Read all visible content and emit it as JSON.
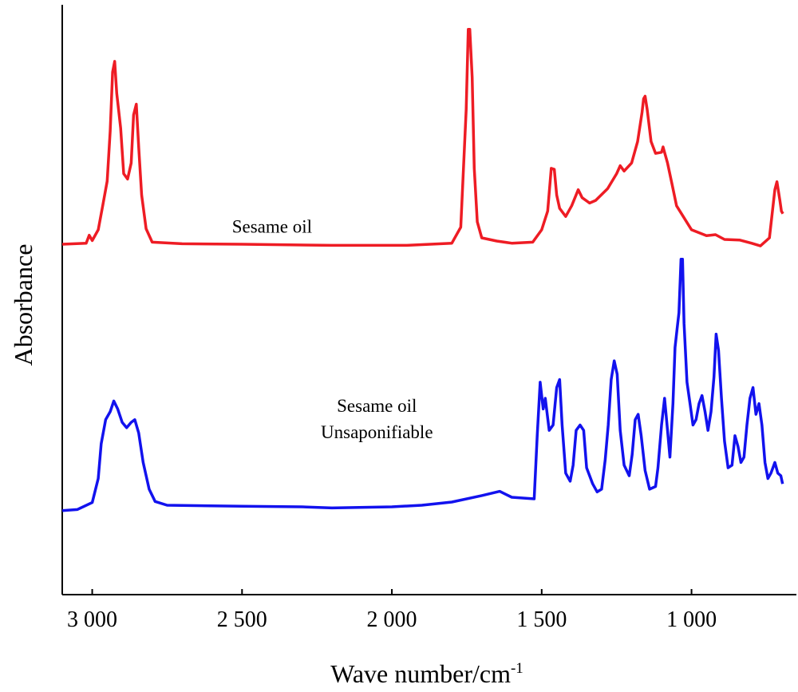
{
  "chart_data": {
    "type": "line",
    "title": "",
    "xlabel": "Wave number/cm",
    "xlabel_superscript": "-1",
    "ylabel": "Absorbance",
    "xlim": [
      3100,
      650
    ],
    "x_reversed": true,
    "ylim": [
      0,
      1
    ],
    "y_ticks_shown": false,
    "grid": false,
    "legend": "none",
    "x_ticks": [
      {
        "value": 3000,
        "label": "3 000"
      },
      {
        "value": 2500,
        "label": "2 500"
      },
      {
        "value": 2000,
        "label": "2 000"
      },
      {
        "value": 1500,
        "label": "1 500"
      },
      {
        "value": 1000,
        "label": "1 000"
      }
    ],
    "series_labels": [
      {
        "lines": [
          "Sesame oil"
        ],
        "x": 2400,
        "y": 0.61
      },
      {
        "lines": [
          "Sesame oil",
          "Unsaponifiable"
        ],
        "x": 2050,
        "y": 0.275
      }
    ],
    "series": [
      {
        "name": "Sesame oil",
        "color": "#ee1c24",
        "points": [
          [
            3100,
            0.588
          ],
          [
            3020,
            0.59
          ],
          [
            3010,
            0.605
          ],
          [
            3000,
            0.595
          ],
          [
            2980,
            0.615
          ],
          [
            2965,
            0.66
          ],
          [
            2950,
            0.706
          ],
          [
            2940,
            0.8
          ],
          [
            2932,
            0.91
          ],
          [
            2925,
            0.93
          ],
          [
            2918,
            0.87
          ],
          [
            2905,
            0.805
          ],
          [
            2895,
            0.72
          ],
          [
            2882,
            0.71
          ],
          [
            2870,
            0.74
          ],
          [
            2862,
            0.83
          ],
          [
            2853,
            0.85
          ],
          [
            2845,
            0.77
          ],
          [
            2835,
            0.68
          ],
          [
            2820,
            0.617
          ],
          [
            2800,
            0.592
          ],
          [
            2700,
            0.589
          ],
          [
            2500,
            0.588
          ],
          [
            2200,
            0.586
          ],
          [
            1950,
            0.586
          ],
          [
            1800,
            0.59
          ],
          [
            1770,
            0.62
          ],
          [
            1752,
            0.84
          ],
          [
            1745,
            0.99
          ],
          [
            1740,
            0.99
          ],
          [
            1732,
            0.9
          ],
          [
            1725,
            0.73
          ],
          [
            1715,
            0.63
          ],
          [
            1700,
            0.6
          ],
          [
            1650,
            0.594
          ],
          [
            1600,
            0.59
          ],
          [
            1530,
            0.592
          ],
          [
            1500,
            0.615
          ],
          [
            1480,
            0.65
          ],
          [
            1468,
            0.73
          ],
          [
            1458,
            0.728
          ],
          [
            1450,
            0.68
          ],
          [
            1440,
            0.655
          ],
          [
            1420,
            0.64
          ],
          [
            1400,
            0.66
          ],
          [
            1378,
            0.69
          ],
          [
            1365,
            0.675
          ],
          [
            1340,
            0.665
          ],
          [
            1320,
            0.67
          ],
          [
            1280,
            0.692
          ],
          [
            1250,
            0.72
          ],
          [
            1238,
            0.735
          ],
          [
            1225,
            0.725
          ],
          [
            1200,
            0.74
          ],
          [
            1180,
            0.78
          ],
          [
            1165,
            0.835
          ],
          [
            1160,
            0.86
          ],
          [
            1155,
            0.865
          ],
          [
            1148,
            0.84
          ],
          [
            1135,
            0.78
          ],
          [
            1120,
            0.758
          ],
          [
            1100,
            0.76
          ],
          [
            1095,
            0.77
          ],
          [
            1080,
            0.74
          ],
          [
            1065,
            0.7
          ],
          [
            1050,
            0.66
          ],
          [
            1000,
            0.615
          ],
          [
            950,
            0.604
          ],
          [
            920,
            0.606
          ],
          [
            890,
            0.597
          ],
          [
            840,
            0.596
          ],
          [
            800,
            0.59
          ],
          [
            770,
            0.585
          ],
          [
            740,
            0.6
          ],
          [
            722,
            0.69
          ],
          [
            715,
            0.705
          ],
          [
            705,
            0.67
          ],
          [
            700,
            0.65
          ],
          [
            695,
            0.645
          ]
        ]
      },
      {
        "name": "Sesame oil Unsaponifiable",
        "color": "#1212ee",
        "points": [
          [
            3100,
            0.09
          ],
          [
            3050,
            0.092
          ],
          [
            3000,
            0.105
          ],
          [
            2980,
            0.15
          ],
          [
            2970,
            0.215
          ],
          [
            2955,
            0.26
          ],
          [
            2940,
            0.275
          ],
          [
            2928,
            0.295
          ],
          [
            2915,
            0.28
          ],
          [
            2900,
            0.255
          ],
          [
            2885,
            0.245
          ],
          [
            2870,
            0.255
          ],
          [
            2858,
            0.26
          ],
          [
            2845,
            0.235
          ],
          [
            2830,
            0.18
          ],
          [
            2810,
            0.13
          ],
          [
            2790,
            0.107
          ],
          [
            2750,
            0.1
          ],
          [
            2500,
            0.098
          ],
          [
            2300,
            0.097
          ],
          [
            2200,
            0.095
          ],
          [
            2000,
            0.097
          ],
          [
            1900,
            0.1
          ],
          [
            1800,
            0.106
          ],
          [
            1700,
            0.118
          ],
          [
            1640,
            0.126
          ],
          [
            1600,
            0.115
          ],
          [
            1525,
            0.112
          ],
          [
            1515,
            0.23
          ],
          [
            1505,
            0.33
          ],
          [
            1495,
            0.28
          ],
          [
            1488,
            0.3
          ],
          [
            1475,
            0.24
          ],
          [
            1462,
            0.25
          ],
          [
            1450,
            0.32
          ],
          [
            1440,
            0.335
          ],
          [
            1432,
            0.25
          ],
          [
            1420,
            0.16
          ],
          [
            1405,
            0.145
          ],
          [
            1395,
            0.175
          ],
          [
            1385,
            0.24
          ],
          [
            1372,
            0.25
          ],
          [
            1360,
            0.24
          ],
          [
            1350,
            0.17
          ],
          [
            1330,
            0.14
          ],
          [
            1315,
            0.125
          ],
          [
            1300,
            0.13
          ],
          [
            1288,
            0.185
          ],
          [
            1278,
            0.25
          ],
          [
            1268,
            0.335
          ],
          [
            1258,
            0.37
          ],
          [
            1248,
            0.345
          ],
          [
            1238,
            0.24
          ],
          [
            1225,
            0.175
          ],
          [
            1208,
            0.155
          ],
          [
            1198,
            0.195
          ],
          [
            1188,
            0.26
          ],
          [
            1178,
            0.27
          ],
          [
            1168,
            0.23
          ],
          [
            1155,
            0.165
          ],
          [
            1140,
            0.13
          ],
          [
            1120,
            0.135
          ],
          [
            1112,
            0.17
          ],
          [
            1100,
            0.25
          ],
          [
            1090,
            0.3
          ],
          [
            1080,
            0.24
          ],
          [
            1072,
            0.19
          ],
          [
            1062,
            0.29
          ],
          [
            1055,
            0.395
          ],
          [
            1048,
            0.43
          ],
          [
            1042,
            0.46
          ],
          [
            1035,
            0.56
          ],
          [
            1030,
            0.56
          ],
          [
            1025,
            0.44
          ],
          [
            1015,
            0.33
          ],
          [
            1005,
            0.29
          ],
          [
            995,
            0.25
          ],
          [
            985,
            0.26
          ],
          [
            975,
            0.29
          ],
          [
            965,
            0.305
          ],
          [
            955,
            0.275
          ],
          [
            945,
            0.24
          ],
          [
            935,
            0.275
          ],
          [
            925,
            0.34
          ],
          [
            918,
            0.42
          ],
          [
            910,
            0.39
          ],
          [
            900,
            0.3
          ],
          [
            890,
            0.22
          ],
          [
            878,
            0.17
          ],
          [
            865,
            0.175
          ],
          [
            855,
            0.23
          ],
          [
            845,
            0.21
          ],
          [
            835,
            0.18
          ],
          [
            825,
            0.19
          ],
          [
            815,
            0.25
          ],
          [
            805,
            0.3
          ],
          [
            795,
            0.32
          ],
          [
            785,
            0.27
          ],
          [
            775,
            0.29
          ],
          [
            765,
            0.25
          ],
          [
            755,
            0.18
          ],
          [
            745,
            0.15
          ],
          [
            735,
            0.16
          ],
          [
            722,
            0.18
          ],
          [
            712,
            0.16
          ],
          [
            702,
            0.155
          ],
          [
            696,
            0.14
          ]
        ]
      }
    ]
  }
}
